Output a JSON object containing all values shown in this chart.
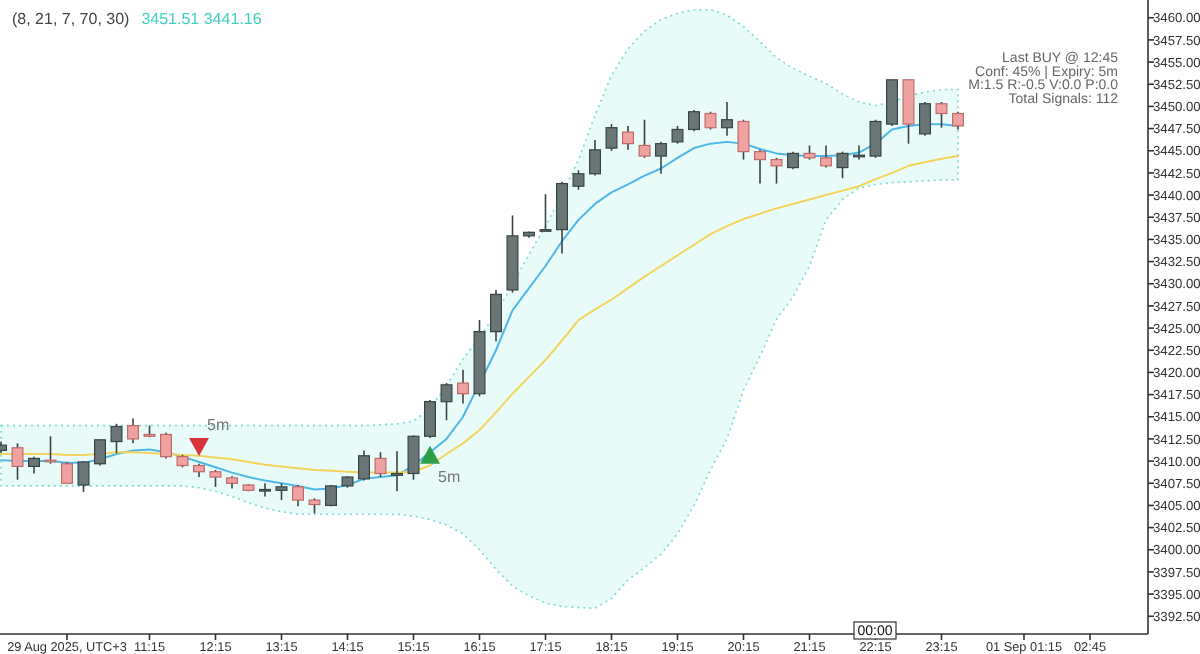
{
  "chart_data": {
    "type": "candlestick",
    "title": "(8, 21, 7, 70, 30)",
    "subtitle": "3451.51 3441.16",
    "categories": [
      null,
      null,
      null,
      null,
      "29 Aug 2025, UTC+3",
      null,
      null,
      null,
      null,
      "11:15",
      null,
      null,
      null,
      "12:15",
      null,
      null,
      null,
      "13:15",
      null,
      null,
      null,
      "14:15",
      null,
      null,
      null,
      "15:15",
      null,
      null,
      null,
      "16:15",
      null,
      null,
      null,
      "17:15",
      null,
      null,
      null,
      "18:15",
      null,
      null,
      null,
      "19:15",
      null,
      null,
      null,
      "20:15",
      null,
      null,
      null,
      "21:15",
      null,
      null,
      null,
      "22:15",
      null,
      null,
      null,
      "23:15",
      null,
      null,
      null,
      null,
      "01 Sep 01:15",
      null,
      null,
      null,
      "02:45",
      null,
      null,
      null
    ],
    "ohlc": [
      [
        3411.2,
        3412.2,
        3410.9,
        3411.8
      ],
      [
        3411.5,
        3412.0,
        3407.9,
        3409.4
      ],
      [
        3409.4,
        3410.5,
        3408.6,
        3410.3
      ],
      [
        3410.1,
        3412.8,
        3409.7,
        3410.0
      ],
      [
        3409.7,
        3409.9,
        3407.5,
        3407.5
      ],
      [
        3407.3,
        3410.0,
        3406.5,
        3409.9
      ],
      [
        3409.7,
        3412.4,
        3409.5,
        3412.4
      ],
      [
        3412.2,
        3414.2,
        3410.9,
        3413.9
      ],
      [
        3414.0,
        3414.8,
        3412.0,
        3412.5
      ],
      [
        3413.0,
        3414.0,
        3412.7,
        3412.8
      ],
      [
        3413.0,
        3413.2,
        3410.3,
        3410.5
      ],
      [
        3410.5,
        3410.7,
        3409.3,
        3409.5
      ],
      [
        3409.5,
        3409.7,
        3408.2,
        3408.8
      ],
      [
        3408.8,
        3409.0,
        3407.1,
        3408.2
      ],
      [
        3408.1,
        3408.3,
        3406.9,
        3407.5
      ],
      [
        3407.3,
        3407.4,
        3406.6,
        3406.7
      ],
      [
        3406.7,
        3407.5,
        3406.0,
        3406.8
      ],
      [
        3406.7,
        3407.5,
        3405.6,
        3407.1
      ],
      [
        3407.1,
        3407.3,
        3404.9,
        3405.6
      ],
      [
        3405.6,
        3405.8,
        3404.1,
        3405.1
      ],
      [
        3405.0,
        3407.3,
        3404.9,
        3407.2
      ],
      [
        3407.2,
        3408.3,
        3407.0,
        3408.2
      ],
      [
        3408.0,
        3411.2,
        3407.8,
        3410.6
      ],
      [
        3410.3,
        3411.0,
        3408.2,
        3408.6
      ],
      [
        3408.4,
        3411.1,
        3406.6,
        3408.6
      ],
      [
        3408.6,
        3412.9,
        3407.9,
        3412.8
      ],
      [
        3412.8,
        3416.9,
        3412.6,
        3416.7
      ],
      [
        3416.7,
        3418.8,
        3414.6,
        3418.6
      ],
      [
        3418.8,
        3420.3,
        3416.5,
        3417.6
      ],
      [
        3417.6,
        3425.9,
        3417.3,
        3424.6
      ],
      [
        3424.6,
        3429.3,
        3423.5,
        3428.8
      ],
      [
        3429.3,
        3437.7,
        3429.0,
        3435.4
      ],
      [
        3435.4,
        3435.9,
        3435.2,
        3435.8
      ],
      [
        3436.0,
        3440.1,
        3435.9,
        3436.1
      ],
      [
        3436.1,
        3441.5,
        3433.4,
        3441.3
      ],
      [
        3441.0,
        3442.8,
        3440.6,
        3442.4
      ],
      [
        3442.4,
        3446.2,
        3442.2,
        3445.1
      ],
      [
        3445.3,
        3448.0,
        3445.0,
        3447.6
      ],
      [
        3447.1,
        3447.8,
        3445.1,
        3445.8
      ],
      [
        3445.6,
        3448.5,
        3444.2,
        3444.4
      ],
      [
        3444.4,
        3446.0,
        3442.4,
        3445.8
      ],
      [
        3446.0,
        3447.8,
        3445.8,
        3447.4
      ],
      [
        3447.4,
        3449.6,
        3447.2,
        3449.4
      ],
      [
        3449.2,
        3449.4,
        3447.4,
        3447.6
      ],
      [
        3447.6,
        3450.5,
        3446.7,
        3448.5
      ],
      [
        3448.3,
        3448.5,
        3444.0,
        3444.9
      ],
      [
        3444.9,
        3445.1,
        3441.3,
        3444.0
      ],
      [
        3444.0,
        3444.2,
        3441.3,
        3443.3
      ],
      [
        3443.1,
        3444.9,
        3442.9,
        3444.7
      ],
      [
        3444.7,
        3445.6,
        3444.0,
        3444.2
      ],
      [
        3444.2,
        3445.6,
        3443.1,
        3443.3
      ],
      [
        3443.1,
        3444.9,
        3441.9,
        3444.7
      ],
      [
        3444.4,
        3445.6,
        3444.0,
        3444.5
      ],
      [
        3444.4,
        3448.5,
        3444.2,
        3448.3
      ],
      [
        3448.0,
        3453.0,
        3447.8,
        3453.0
      ],
      [
        3453.0,
        3453.0,
        3445.8,
        3448.0
      ],
      [
        3446.9,
        3450.5,
        3446.7,
        3450.3
      ],
      [
        3450.3,
        3450.5,
        3447.6,
        3449.2
      ],
      [
        3449.2,
        3449.4,
        3447.4,
        3447.8
      ],
      null,
      null,
      null,
      null,
      null,
      null,
      null,
      null,
      null,
      null,
      null
    ],
    "series": [
      {
        "type": "line",
        "color": "#4fb8e6",
        "values": [
          3410.1,
          3410.0,
          3410.0,
          3410.0,
          3409.8,
          3409.8,
          3410.2,
          3410.8,
          3411.2,
          3411.3,
          3411.0,
          3410.5,
          3409.9,
          3409.3,
          3408.7,
          3408.2,
          3407.8,
          3407.5,
          3407.2,
          3406.8,
          3406.9,
          3407.3,
          3408.0,
          3408.2,
          3408.4,
          3409.5,
          3411.0,
          3412.5,
          3415.0,
          null,
          3422.5,
          3427.0,
          3429.5,
          3432.0,
          3434.8,
          3437.2,
          3439.0,
          3440.3,
          3441.2,
          3442.2,
          3443.0,
          3444.2,
          3445.3,
          3445.8,
          3446.0,
          3445.8,
          3445.2,
          3444.7,
          3444.5,
          3444.4,
          3444.4,
          3444.5,
          3444.8,
          3445.8,
          3447.4,
          3447.8,
          3448.0,
          3448.0,
          3447.8,
          null,
          null,
          null,
          null,
          null,
          null,
          null,
          null,
          null,
          null,
          null
        ],
        "upper": [
          3414.0,
          3414.0,
          3414.0,
          3414.0,
          3414.0,
          3414.0,
          3414.0,
          3414.0,
          3414.0,
          3414.0,
          3414.0,
          3414.0,
          3414.0,
          3414.0,
          3414.0,
          3414.0,
          3414.0,
          3414.0,
          3414.0,
          3414.0,
          3414.0,
          3414.0,
          3414.0,
          3414.1,
          3414.2,
          3414.5,
          3416.0,
          3418.5,
          3421.5,
          3424.0,
          3426.6,
          3430.0,
          3433.3,
          3436.5,
          3440.0,
          3444.0,
          3449.0,
          3453.5,
          3456.5,
          3458.5,
          3459.8,
          3460.5,
          3460.9,
          3460.9,
          3460.3,
          3459.0,
          3457.3,
          3455.5,
          3454.3,
          3453.4,
          3452.6,
          3451.4,
          3450.5,
          3450.1,
          3450.5,
          3451.2,
          3451.6,
          3451.9,
          3451.9,
          null,
          null,
          null,
          null,
          null,
          null,
          null,
          null,
          null,
          null,
          null
        ],
        "lower": [
          3407.2,
          3407.2,
          3407.2,
          3407.2,
          3407.2,
          3407.2,
          3407.2,
          3407.2,
          3407.2,
          3407.2,
          3407.2,
          3407.2,
          3407.0,
          3406.6,
          3406.0,
          3405.3,
          3404.7,
          3404.3,
          3404.0,
          3404.0,
          3404.0,
          3404.0,
          3404.0,
          3404.0,
          3404.0,
          3403.8,
          3403.4,
          3402.8,
          3401.8,
          3400.0,
          3397.8,
          3395.9,
          3394.8,
          3394.0,
          3393.6,
          3393.5,
          3393.4,
          3394.5,
          3396.6,
          3398.0,
          3399.5,
          3401.8,
          3405.0,
          3409.0,
          3412.5,
          3418.0,
          3421.8,
          3426.0,
          3428.5,
          3432.0,
          3437.2,
          3439.5,
          3440.8,
          3441.2,
          3441.4,
          3441.5,
          3441.6,
          3441.7,
          3441.7,
          null,
          null,
          null,
          null,
          null,
          null,
          null,
          null,
          null,
          null,
          null
        ]
      },
      {
        "type": "line",
        "color": "#f2d45c",
        "values": [
          3410.8,
          3410.8,
          3410.8,
          3410.8,
          3410.7,
          3410.7,
          3410.8,
          3411.0,
          3411.0,
          3410.9,
          3410.8,
          3410.7,
          3410.6,
          3410.4,
          3410.2,
          3409.9,
          3409.6,
          3409.4,
          3409.2,
          3409.0,
          3408.9,
          3408.8,
          3408.7,
          3408.7,
          3408.7,
          3408.8,
          3409.5,
          3410.8,
          3412.0,
          3413.5,
          3415.5,
          3417.6,
          3419.5,
          3421.4,
          3423.6,
          3425.9,
          3427.1,
          3428.2,
          3429.5,
          3430.8,
          3432.0,
          3433.2,
          3434.4,
          3435.6,
          3436.5,
          3437.3,
          3437.9,
          3438.5,
          3439.0,
          3439.5,
          3440.0,
          3440.5,
          3441.0,
          3441.8,
          3442.5,
          3443.3,
          3443.7,
          3444.1,
          3444.4,
          null,
          null,
          null,
          null,
          null,
          null,
          null,
          null,
          null,
          null,
          null
        ]
      },
      {
        "type": "scatter",
        "name": "5m",
        "color": "#d8333b",
        "marker": "triangle-down",
        "values": [
          null,
          null,
          null,
          null,
          null,
          null,
          null,
          null,
          null,
          null,
          null,
          null,
          3411.7,
          null,
          null,
          null,
          null,
          null,
          null,
          null,
          null,
          null,
          null,
          null,
          null,
          null,
          null,
          null,
          null,
          null,
          null,
          null,
          null,
          null,
          null,
          null,
          null,
          null,
          null,
          null,
          null,
          null,
          null,
          null,
          null,
          null,
          null,
          null,
          null,
          null,
          null,
          null,
          null,
          null,
          null,
          null,
          null,
          null,
          null,
          null,
          null,
          null,
          null,
          null,
          null,
          null,
          null,
          null,
          null,
          null
        ]
      },
      {
        "type": "scatter",
        "name": "5m",
        "color": "#2e9e48",
        "marker": "triangle",
        "values": [
          null,
          null,
          null,
          null,
          null,
          null,
          null,
          null,
          null,
          null,
          null,
          null,
          null,
          null,
          null,
          null,
          null,
          null,
          null,
          null,
          null,
          null,
          null,
          null,
          null,
          null,
          3410.6,
          null,
          null,
          null,
          null,
          null,
          null,
          null,
          null,
          null,
          null,
          null,
          null,
          null,
          null,
          null,
          null,
          null,
          null,
          null,
          null,
          null,
          null,
          null,
          null,
          null,
          null,
          null,
          null,
          null,
          null,
          null,
          null,
          null,
          null,
          null,
          null,
          null,
          null,
          null,
          null,
          null,
          null,
          null
        ]
      }
    ],
    "ylim": [
      3390.5,
      3462
    ],
    "yticks": [
      {
        "value": 3392.5,
        "label": "3392.50"
      },
      {
        "value": 3395,
        "label": "3395.00"
      },
      {
        "value": 3397.5,
        "label": "3397.50"
      },
      {
        "value": 3400,
        "label": "3400.00"
      },
      {
        "value": 3402.5,
        "label": "3402.50"
      },
      {
        "value": 3405,
        "label": "3405.00"
      },
      {
        "value": 3407.5,
        "label": "3407.50"
      },
      {
        "value": 3410,
        "label": "3410.00"
      },
      {
        "value": 3412.5,
        "label": "3412.50"
      },
      {
        "value": 3415,
        "label": "3415.00"
      },
      {
        "value": 3417.5,
        "label": "3417.50"
      },
      {
        "value": 3420,
        "label": "3420.00"
      },
      {
        "value": 3422.5,
        "label": "3422.50"
      },
      {
        "value": 3425,
        "label": "3425.00"
      },
      {
        "value": 3427.5,
        "label": "3427.50"
      },
      {
        "value": 3430,
        "label": "3430.00"
      },
      {
        "value": 3432.5,
        "label": "3432.50"
      },
      {
        "value": 3435,
        "label": "3435.00"
      },
      {
        "value": 3437.5,
        "label": "3437.50"
      },
      {
        "value": 3440,
        "label": "3440.00"
      },
      {
        "value": 3442.5,
        "label": "3442.50"
      },
      {
        "value": 3445,
        "label": "3445.00"
      },
      {
        "value": 3447.5,
        "label": "3447.50"
      },
      {
        "value": 3450,
        "label": "3450.00"
      },
      {
        "value": 3452.5,
        "label": "3452.50"
      },
      {
        "value": 3455,
        "label": "3455.00"
      },
      {
        "value": 3457.5,
        "label": "3457.50"
      },
      {
        "value": 3460,
        "label": "3460.00"
      }
    ],
    "annotations": [
      "Last BUY @ 12:45",
      "Conf: 45% | Expiry: 5m",
      "M:1.5 R:-0.5 V:0.0 P:0.0",
      "Total Signals: 112",
      "00:00"
    ]
  }
}
